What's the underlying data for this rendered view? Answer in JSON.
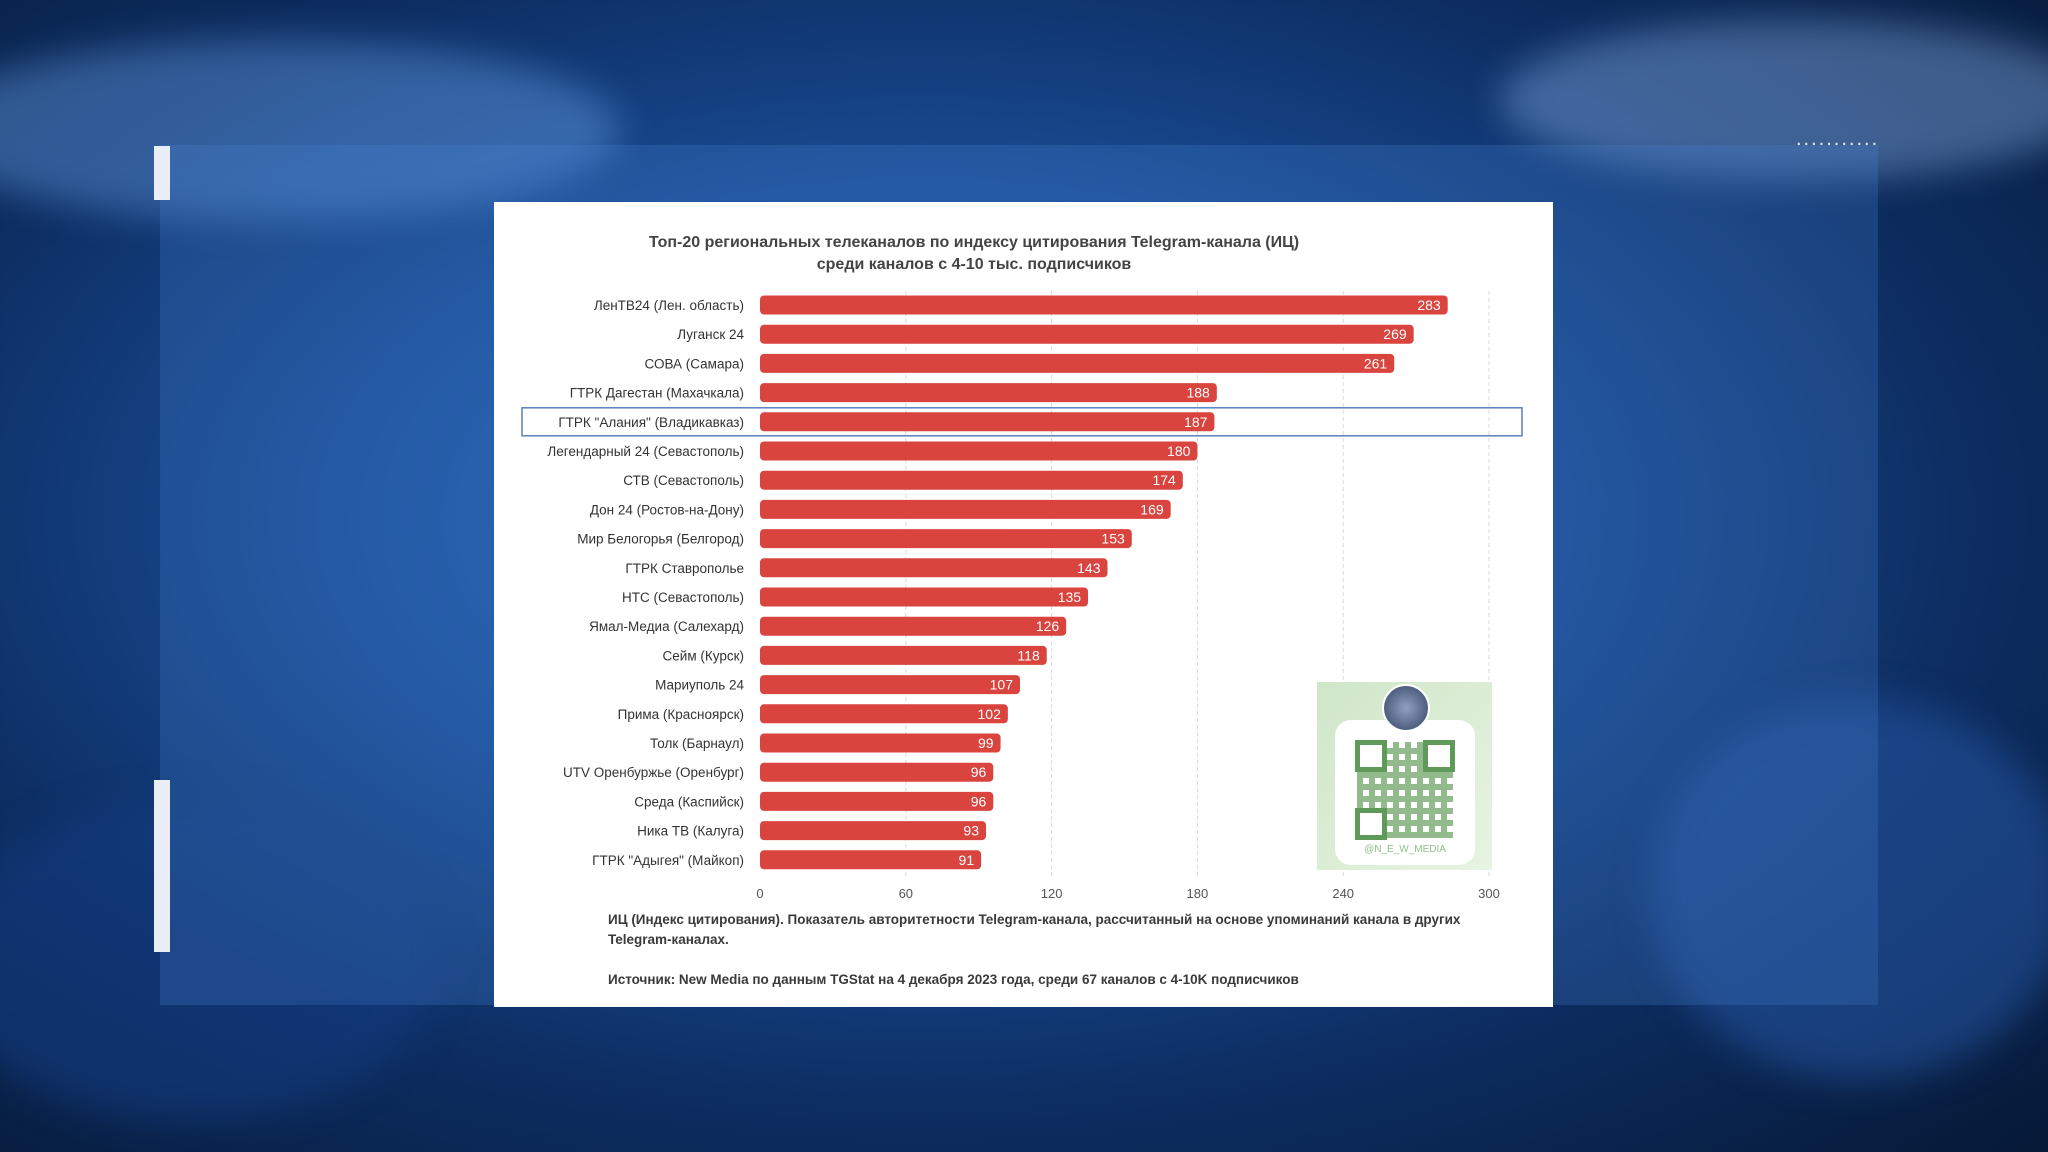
{
  "chart_data": {
    "type": "bar",
    "orientation": "horizontal",
    "title": [
      "Топ-20 региональных телеканалов по индексу цитирования Telegram-канала (ИЦ)",
      "среди каналов с 4-10 тыс. подписчиков"
    ],
    "categories": [
      "ЛенТВ24 (Лен. область)",
      "Луганск 24",
      "СОВА (Самара)",
      "ГТРК Дагестан (Махачкала)",
      "ГТРК \"Алания\" (Владикавказ)",
      "Легендарный 24 (Севастополь)",
      "СТВ (Севастополь)",
      "Дон 24 (Ростов-на-Дону)",
      "Мир Белогорья (Белгород)",
      "ГТРК Ставрополье",
      "НТС (Севастополь)",
      "Ямал-Медиа (Салехард)",
      "Сейм (Курск)",
      "Мариуполь 24",
      "Прима (Красноярск)",
      "Толк (Барнаул)",
      "UTV Оренбуржье (Оренбург)",
      "Среда (Каспийск)",
      "Ника ТВ (Калуга)",
      "ГТРК \"Адыгея\" (Майкоп)"
    ],
    "values": [
      283,
      269,
      261,
      188,
      187,
      180,
      174,
      169,
      153,
      143,
      135,
      126,
      118,
      107,
      102,
      99,
      96,
      96,
      93,
      91
    ],
    "highlighted_category": "ГТРК \"Алания\" (Владикавказ)",
    "xlim": [
      0,
      300
    ],
    "xticks": [
      0,
      60,
      120,
      180,
      240,
      300
    ],
    "grid": "vertical dashed",
    "bar_color": "#d9443f",
    "highlight_color": "#5b7fc0"
  },
  "footnote": "ИЦ (Индекс цитирования). Показатель авторитетности Telegram-канала, рассчитанный на основе упоминаний канала в других Telegram-каналах.",
  "source": "Источник: New Media по данным TGStat на 4 декабря 2023 года, среди 67 каналов с 4-10K подписчиков",
  "qr": {
    "handle": "@N_E_W_MEDIA",
    "icon": "qr-code-icon"
  },
  "decor": {
    "dots": "..........."
  }
}
